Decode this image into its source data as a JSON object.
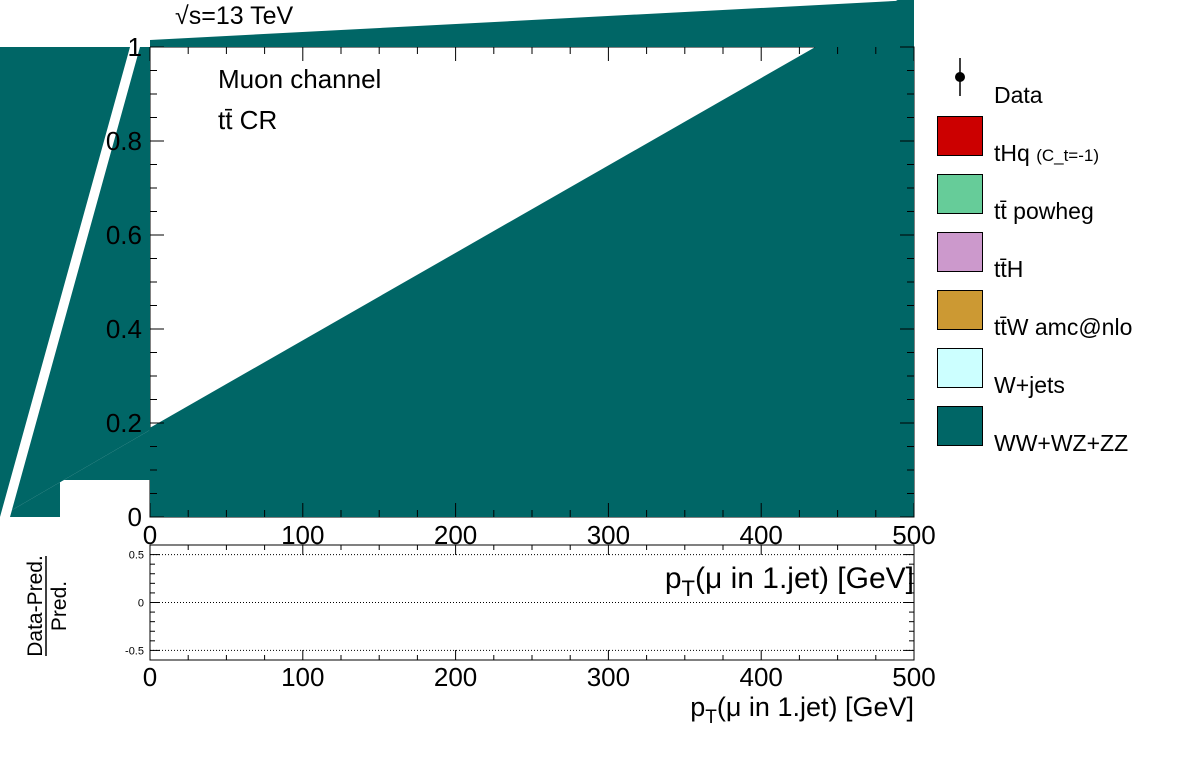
{
  "chart_data": [
    {
      "type": "area",
      "subtitle_energy": "=13 TeV",
      "sqrt_symbol": "√s",
      "annotations": [
        "Muon channel",
        "tt̄ CR"
      ],
      "xlim": [
        0,
        500
      ],
      "ylim": [
        0,
        1
      ],
      "x_ticks": [
        "0",
        "100",
        "200",
        "300",
        "400",
        "500"
      ],
      "y_ticks": [
        "0",
        "0.2",
        "0.4",
        "0.6",
        "0.8",
        "1"
      ],
      "xlabel": "p",
      "xlabel_sub": "T",
      "xlabel_rest": "(μ in 1.jet) [GeV]",
      "legend": [
        {
          "label": "Data",
          "sub": "",
          "kind": "marker",
          "color": "#000000"
        },
        {
          "label": "tHq ",
          "sub": "(C_t=-1)",
          "kind": "fill",
          "color": "#cc0000"
        },
        {
          "label": "tt̄ powheg",
          "sub": "",
          "kind": "fill",
          "color": "#66cc99"
        },
        {
          "label": "tt̄H",
          "sub": "",
          "kind": "fill",
          "color": "#cc99cc"
        },
        {
          "label": "tt̄W amc@nlo",
          "sub": "",
          "kind": "fill",
          "color": "#cc9933"
        },
        {
          "label": "W+jets",
          "sub": "",
          "kind": "fill",
          "color": "#ccffff"
        },
        {
          "label": "WW+WZ+ZZ",
          "sub": "",
          "kind": "fill",
          "color": "#006666"
        }
      ],
      "series": [
        {
          "name": "WW+WZ+ZZ",
          "color": "#006666",
          "x": [
            0,
            500
          ],
          "y": [
            0.19,
            1.12
          ]
        }
      ]
    },
    {
      "type": "line",
      "ylabel_num": "Data-Pred.",
      "ylabel_den": "Pred.",
      "xlim": [
        0,
        500
      ],
      "ylim": [
        -0.6,
        0.6
      ],
      "x_ticks": [
        "0",
        "100",
        "200",
        "300",
        "400",
        "500"
      ],
      "y_ticks": [
        "-0.5",
        "0",
        "0.5"
      ],
      "reference_lines": [
        -0.5,
        0,
        0.5
      ],
      "xlabel": "p",
      "xlabel_sub": "T",
      "xlabel_rest": "(μ in 1.jet) [GeV]"
    }
  ]
}
